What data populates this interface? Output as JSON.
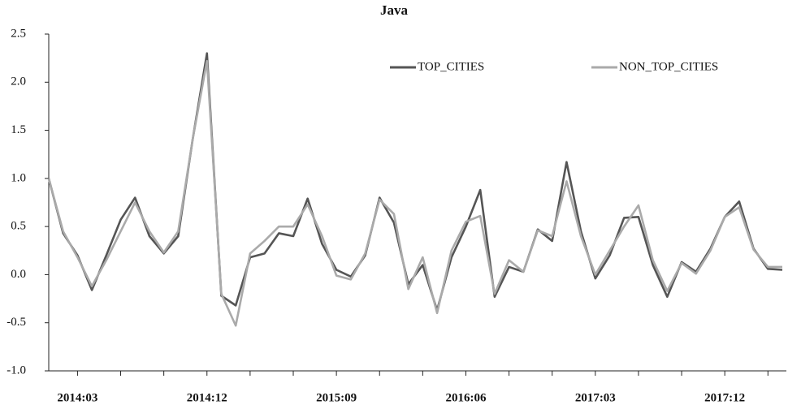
{
  "chart_data": {
    "type": "line",
    "title": "Java",
    "categories": [
      null,
      null,
      "2014:03",
      null,
      null,
      null,
      null,
      null,
      null,
      null,
      null,
      "2014:12",
      null,
      null,
      null,
      null,
      null,
      null,
      null,
      null,
      "2015:09",
      null,
      null,
      null,
      null,
      null,
      null,
      null,
      null,
      "2016:06",
      null,
      null,
      null,
      null,
      null,
      null,
      null,
      null,
      "2017:03",
      null,
      null,
      null,
      null,
      null,
      null,
      null,
      null,
      "2017:12",
      null,
      null,
      null,
      null
    ],
    "series": [
      {
        "name": "TOP_CITIES",
        "color": "#555555",
        "values": [
          1.0,
          0.43,
          0.2,
          -0.16,
          0.2,
          0.57,
          0.8,
          0.4,
          0.22,
          0.4,
          1.4,
          2.3,
          -0.22,
          -0.32,
          0.18,
          0.22,
          0.43,
          0.4,
          0.79,
          0.32,
          0.05,
          -0.02,
          0.2,
          0.8,
          0.54,
          -0.1,
          0.1,
          -0.37,
          0.18,
          0.5,
          0.88,
          -0.23,
          0.08,
          0.03,
          0.47,
          0.35,
          1.17,
          0.45,
          -0.04,
          0.2,
          0.59,
          0.6,
          0.1,
          -0.23,
          0.13,
          0.03,
          0.27,
          0.6,
          0.76,
          0.27,
          0.06,
          0.05
        ]
      },
      {
        "name": "NON_TOP_CITIES",
        "color": "#aaaaaa",
        "values": [
          1.0,
          0.45,
          0.18,
          -0.12,
          0.15,
          0.45,
          0.75,
          0.45,
          0.23,
          0.45,
          1.4,
          2.22,
          -0.2,
          -0.53,
          0.22,
          0.35,
          0.5,
          0.5,
          0.73,
          0.4,
          -0.01,
          -0.05,
          0.22,
          0.78,
          0.63,
          -0.15,
          0.18,
          -0.4,
          0.25,
          0.55,
          0.61,
          -0.2,
          0.15,
          0.03,
          0.46,
          0.4,
          0.97,
          0.4,
          0.0,
          0.25,
          0.5,
          0.72,
          0.15,
          -0.17,
          0.12,
          0.01,
          0.25,
          0.6,
          0.7,
          0.26,
          0.08,
          0.08
        ]
      }
    ],
    "ylim": [
      -1.0,
      2.5
    ],
    "yticks": [
      {
        "value": -1.0,
        "label": "-1.0"
      },
      {
        "value": -0.5,
        "label": "-0.5"
      },
      {
        "value": 0.0,
        "label": "0.0"
      },
      {
        "value": 0.5,
        "label": "0.5"
      },
      {
        "value": 1.0,
        "label": "1.0"
      },
      {
        "value": 1.5,
        "label": "1.5"
      },
      {
        "value": 2.0,
        "label": "2.0"
      },
      {
        "value": 2.5,
        "label": "2.5"
      }
    ],
    "grid": false,
    "legend": "upper right"
  }
}
